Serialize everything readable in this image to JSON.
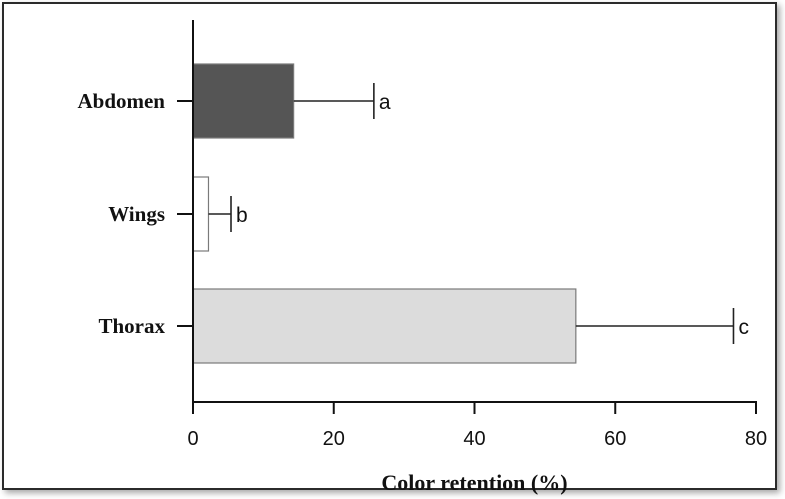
{
  "chart_data": {
    "type": "bar",
    "orientation": "horizontal",
    "categories": [
      "Abdomen",
      "Wings",
      "Thorax"
    ],
    "values": [
      14.3,
      2.2,
      54.4
    ],
    "errors": [
      11.4,
      3.2,
      22.4
    ],
    "significance": [
      "a",
      "b",
      "c"
    ],
    "colors": [
      "#555555",
      "#ffffff",
      "#dcdcdc"
    ],
    "xlabel": "Color retention (%)",
    "ylabel": "",
    "title": "",
    "xlim": [
      0,
      80
    ],
    "xticks": [
      "0",
      "20",
      "40",
      "60",
      "80"
    ],
    "grid": false,
    "legend": "none"
  }
}
